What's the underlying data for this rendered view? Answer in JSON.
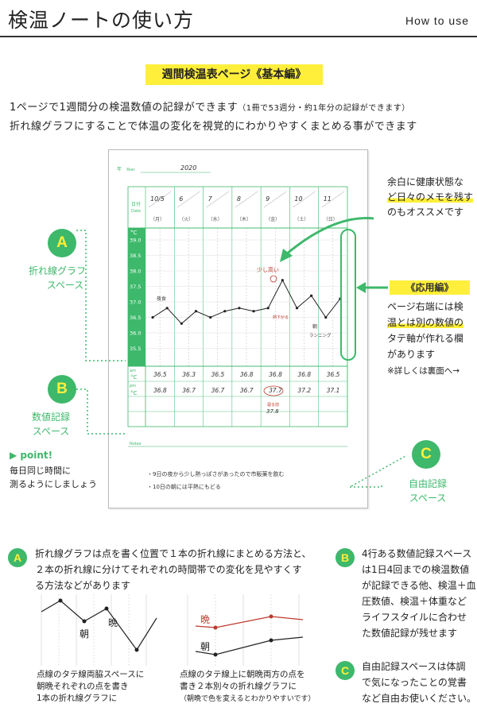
{
  "header": {
    "title": "検温ノートの使い方",
    "subtitle": "How to use"
  },
  "section_tag": "週間検温表ページ《基本編》",
  "intro": {
    "line1": "1ページで1週間分の検温数値の記録ができます",
    "line1_note": "（1冊で53週分・約1年分の記録ができます）",
    "line2": "折れ線グラフにすることで体温の変化を視覚的にわかりやすくまとめる事ができます"
  },
  "sheet": {
    "year_label": "年",
    "year_label_en": "Year",
    "year_value": "2020",
    "date_label": "日付",
    "date_label_en": "Date",
    "dates": [
      "10/5",
      "6",
      "7",
      "8",
      "9",
      "10",
      "11"
    ],
    "weekdays": [
      "（月）",
      "（火）",
      "（水）",
      "（木）",
      "（金）",
      "（土）",
      "（日）"
    ],
    "temp_axis": [
      "39.0",
      "38.5",
      "38.0",
      "37.5",
      "37.0",
      "36.5",
      "36.0",
      "35.5"
    ],
    "am_label": "am",
    "pm_label": "pm",
    "celsius": "°C",
    "row_am": [
      "36.5",
      "36.3",
      "36.5",
      "36.8",
      "36.8",
      "36.8",
      "36.5"
    ],
    "row_pm": [
      "36.8",
      "36.7",
      "36.7",
      "36.7",
      "37.7",
      "37.2",
      "37.1"
    ],
    "extra_value": "37.8",
    "extra_note": "寝る前",
    "graph_notes": {
      "yashoku": "夜",
      "yashoku_full": "夜食",
      "sukoshi_takai": "少し高い",
      "netsu_sagaru": "熱下がる",
      "asa": "朝",
      "running": "ランニング"
    },
    "notes_label": "Notes",
    "note1": "・9日の夜から少し熱っぽさがあったので市販薬を飲む",
    "note2": "・10日の朝には平熱にもどる"
  },
  "callouts": {
    "memo": [
      "余白に健康状態な",
      "ど日々のメモを残す",
      "のもオススメです"
    ],
    "ouyo_tag": "《応用編》",
    "ouyo": [
      "ページ右端には検",
      "温とは別の数値の",
      "タテ軸が作れる欄",
      "があります"
    ],
    "ouyo_ref": "※詳しくは裏面へ→",
    "a_label": [
      "折れ線グラフ",
      "スペース"
    ],
    "b_label": [
      "数値記録",
      "スペース"
    ],
    "c_label": [
      "自由記録",
      "スペース"
    ],
    "point_title": "▶ point!",
    "point_text": [
      "毎日同じ時間に",
      "測るようにしましょう"
    ]
  },
  "letters": {
    "a": "A",
    "b": "B",
    "c": "C"
  },
  "bottom": {
    "a_text": [
      "折れ線グラフは点を書く位置で１本の折れ線にまとめる方法と、",
      "２本の折れ線に分けてそれぞれの時間帯での変化を見やすくす",
      "る方法などがあります"
    ],
    "b_text": [
      "4行ある数値記録スペース",
      "は1日4回までの検温数値",
      "が記録できる他、検温＋血",
      "圧数値、検温＋体重など",
      "ライフスタイルに合わせ",
      "た数値記録が残せます"
    ],
    "c_text": [
      "自由記録スペースは体調",
      "で気になったことの覚書",
      "など自由お使いください。"
    ],
    "fig1_asa": "朝",
    "fig1_ban": "晩",
    "fig2_asa": "朝",
    "fig2_ban": "晩",
    "cap1": [
      "点線のタテ線両脇スペースに",
      "朝晩それぞれの点を書き",
      "1本の折れ線グラフに"
    ],
    "cap2": [
      "点線のタテ線上に朝晩両方の点を",
      "書き２本別々の折れ線グラフに"
    ],
    "cap2_note": "（朝晩で色を変えるとわかりやすいです）"
  },
  "colors": {
    "green": "#3eb86b",
    "yellow": "#ffef3a",
    "red": "#c0392b"
  }
}
